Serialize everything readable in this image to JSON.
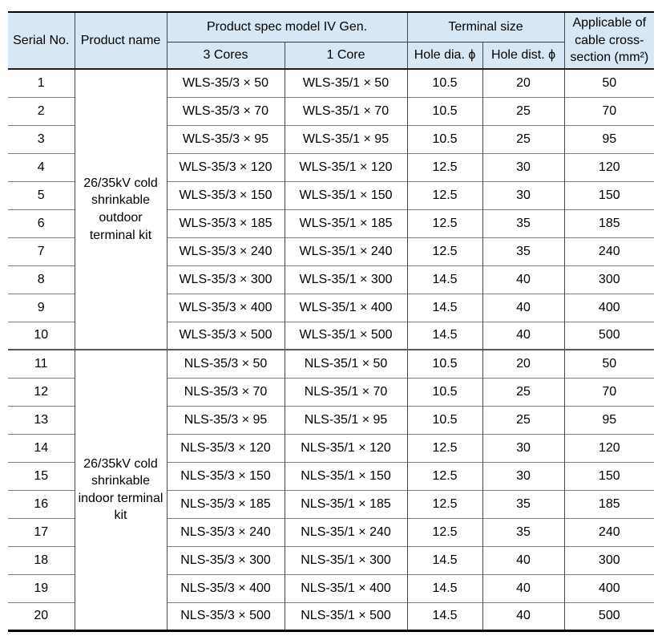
{
  "colors": {
    "header_bg": "#d7e7f3",
    "row_line": "#7d7d7d",
    "column_line": "#474747",
    "outer_border": "#000000"
  },
  "table": {
    "header": {
      "serial": "Serial No.",
      "product_name": "Product name",
      "spec_group": "Product spec model IV Gen.",
      "cores3": "3 Cores",
      "core1": "1 Core",
      "terminal_group": "Terminal size",
      "hole_dia": "Hole dia. ϕ",
      "hole_dist": "Hole dist. ϕ",
      "cross_section": "Applicable of cable cross-section (mm²)"
    },
    "groups": [
      {
        "product_name": "26/35kV cold shrinkable outdoor terminal kit",
        "rows": [
          {
            "serial": "1",
            "cores3": "WLS-35/3 × 50",
            "core1": "WLS-35/1 × 50",
            "hole_dia": "10.5",
            "hole_dist": "20",
            "cross_section": "50"
          },
          {
            "serial": "2",
            "cores3": "WLS-35/3 × 70",
            "core1": "WLS-35/1 × 70",
            "hole_dia": "10.5",
            "hole_dist": "25",
            "cross_section": "70"
          },
          {
            "serial": "3",
            "cores3": "WLS-35/3 × 95",
            "core1": "WLS-35/1 × 95",
            "hole_dia": "10.5",
            "hole_dist": "25",
            "cross_section": "95"
          },
          {
            "serial": "4",
            "cores3": "WLS-35/3 × 120",
            "core1": "WLS-35/1 × 120",
            "hole_dia": "12.5",
            "hole_dist": "30",
            "cross_section": "120"
          },
          {
            "serial": "5",
            "cores3": "WLS-35/3 × 150",
            "core1": "WLS-35/1 × 150",
            "hole_dia": "12.5",
            "hole_dist": "30",
            "cross_section": "150"
          },
          {
            "serial": "6",
            "cores3": "WLS-35/3 × 185",
            "core1": "WLS-35/1 × 185",
            "hole_dia": "12.5",
            "hole_dist": "35",
            "cross_section": "185"
          },
          {
            "serial": "7",
            "cores3": "WLS-35/3 × 240",
            "core1": "WLS-35/1 × 240",
            "hole_dia": "12.5",
            "hole_dist": "35",
            "cross_section": "240"
          },
          {
            "serial": "8",
            "cores3": "WLS-35/3 × 300",
            "core1": "WLS-35/1 × 300",
            "hole_dia": "14.5",
            "hole_dist": "40",
            "cross_section": "300"
          },
          {
            "serial": "9",
            "cores3": "WLS-35/3 × 400",
            "core1": "WLS-35/1 × 400",
            "hole_dia": "14.5",
            "hole_dist": "40",
            "cross_section": "400"
          },
          {
            "serial": "10",
            "cores3": "WLS-35/3 × 500",
            "core1": "WLS-35/1 × 500",
            "hole_dia": "14.5",
            "hole_dist": "40",
            "cross_section": "500"
          }
        ]
      },
      {
        "product_name": "26/35kV cold shrinkable indoor terminal kit",
        "rows": [
          {
            "serial": "11",
            "cores3": "NLS-35/3 × 50",
            "core1": "NLS-35/1 × 50",
            "hole_dia": "10.5",
            "hole_dist": "20",
            "cross_section": "50"
          },
          {
            "serial": "12",
            "cores3": "NLS-35/3 × 70",
            "core1": "NLS-35/1 × 70",
            "hole_dia": "10.5",
            "hole_dist": "25",
            "cross_section": "70"
          },
          {
            "serial": "13",
            "cores3": "NLS-35/3 × 95",
            "core1": "NLS-35/1 × 95",
            "hole_dia": "10.5",
            "hole_dist": "25",
            "cross_section": "95"
          },
          {
            "serial": "14",
            "cores3": "NLS-35/3 × 120",
            "core1": "NLS-35/1 × 120",
            "hole_dia": "12.5",
            "hole_dist": "30",
            "cross_section": "120"
          },
          {
            "serial": "15",
            "cores3": "NLS-35/3 × 150",
            "core1": "NLS-35/1 × 150",
            "hole_dia": "12.5",
            "hole_dist": "30",
            "cross_section": "150"
          },
          {
            "serial": "16",
            "cores3": "NLS-35/3 × 185",
            "core1": "NLS-35/1 × 185",
            "hole_dia": "12.5",
            "hole_dist": "35",
            "cross_section": "185"
          },
          {
            "serial": "17",
            "cores3": "NLS-35/3 × 240",
            "core1": "NLS-35/1 × 240",
            "hole_dia": "12.5",
            "hole_dist": "35",
            "cross_section": "240"
          },
          {
            "serial": "18",
            "cores3": "NLS-35/3 × 300",
            "core1": "NLS-35/1 × 300",
            "hole_dia": "14.5",
            "hole_dist": "40",
            "cross_section": "300"
          },
          {
            "serial": "19",
            "cores3": "NLS-35/3 × 400",
            "core1": "NLS-35/1 × 400",
            "hole_dia": "14.5",
            "hole_dist": "40",
            "cross_section": "400"
          },
          {
            "serial": "20",
            "cores3": "NLS-35/3 × 500",
            "core1": "NLS-35/1 × 500",
            "hole_dia": "14.5",
            "hole_dist": "40",
            "cross_section": "500"
          }
        ]
      }
    ]
  }
}
